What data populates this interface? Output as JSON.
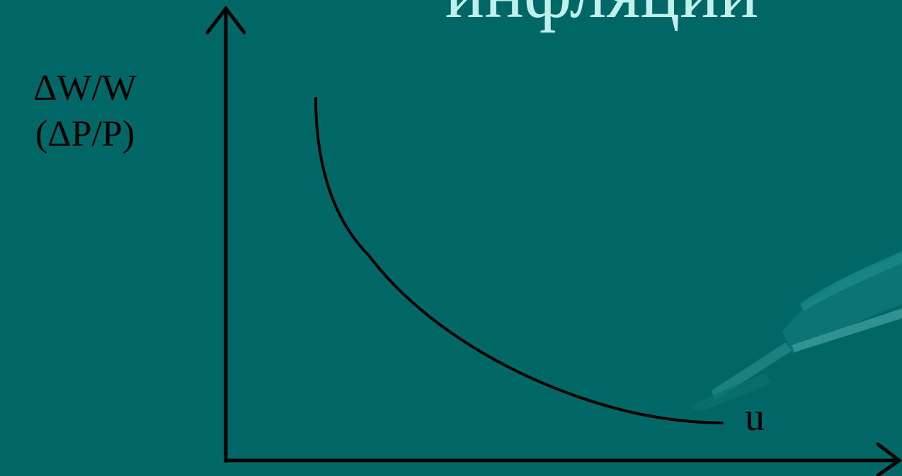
{
  "title": "инфляции",
  "y_axis_label": {
    "line1": "ΔW/W",
    "line2": "(ΔP/P)"
  },
  "curve_label": "u",
  "colors": {
    "background": "#006666",
    "title": "#bff0ec",
    "ink": "#000000",
    "decoration": "#0f7a7a"
  },
  "decoration": "pen-icon"
}
